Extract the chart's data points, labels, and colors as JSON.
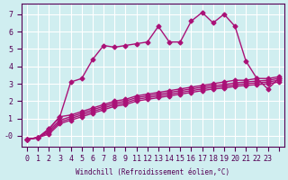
{
  "bg_color": "#d0eef0",
  "grid_color": "#ffffff",
  "line_color": "#aa1177",
  "marker": "D",
  "marker_size": 2.5,
  "linewidth": 1.0,
  "xlabel": "Windchill (Refroidissement éolien,°C)",
  "xlim": [
    -0.5,
    23.5
  ],
  "ylim": [
    -0.6,
    7.6
  ],
  "yticks": [
    0,
    1,
    2,
    3,
    4,
    5,
    6,
    7
  ],
  "ytick_labels": [
    "-0",
    "1",
    "2",
    "3",
    "4",
    "5",
    "6",
    "7"
  ],
  "xtick_positions": [
    0,
    1,
    2,
    3,
    4,
    5,
    6,
    7,
    8,
    9,
    10,
    11,
    12,
    13,
    14,
    15,
    16,
    17,
    18,
    19,
    20,
    21,
    22,
    23
  ],
  "xtick_labels": [
    "0",
    "1",
    "2",
    "3",
    "4",
    "5",
    "6",
    "7",
    "8",
    "9",
    "11",
    "12",
    "13",
    "14",
    "15",
    "16",
    "17",
    "18",
    "19",
    "20",
    "21",
    "22",
    "23",
    ""
  ],
  "series": [
    [
      -0.2,
      -0.1,
      0.4,
      1.1,
      3.1,
      3.3,
      4.4,
      5.2,
      5.1,
      5.2,
      5.3,
      5.4,
      6.3,
      5.4,
      5.4,
      6.6,
      7.1,
      6.5,
      7.0,
      6.3,
      4.3,
      3.3,
      2.7,
      3.3
    ],
    [
      -0.2,
      -0.1,
      0.4,
      1.1,
      1.2,
      1.4,
      1.6,
      1.8,
      2.0,
      2.1,
      2.3,
      2.4,
      2.5,
      2.6,
      2.7,
      2.8,
      2.9,
      3.0,
      3.1,
      3.2,
      3.2,
      3.3,
      3.3,
      3.4
    ],
    [
      -0.2,
      -0.1,
      0.3,
      0.9,
      1.1,
      1.3,
      1.5,
      1.7,
      1.9,
      2.0,
      2.2,
      2.3,
      2.4,
      2.5,
      2.6,
      2.7,
      2.8,
      2.9,
      2.95,
      3.05,
      3.1,
      3.15,
      3.2,
      3.3
    ],
    [
      -0.2,
      -0.1,
      0.2,
      0.8,
      1.0,
      1.2,
      1.4,
      1.6,
      1.8,
      1.9,
      2.1,
      2.2,
      2.3,
      2.4,
      2.5,
      2.6,
      2.7,
      2.8,
      2.85,
      2.95,
      3.0,
      3.05,
      3.1,
      3.2
    ],
    [
      -0.2,
      -0.1,
      0.1,
      0.7,
      0.9,
      1.1,
      1.3,
      1.5,
      1.7,
      1.8,
      2.0,
      2.1,
      2.2,
      2.3,
      2.4,
      2.5,
      2.6,
      2.7,
      2.75,
      2.85,
      2.9,
      2.95,
      3.0,
      3.1
    ]
  ]
}
